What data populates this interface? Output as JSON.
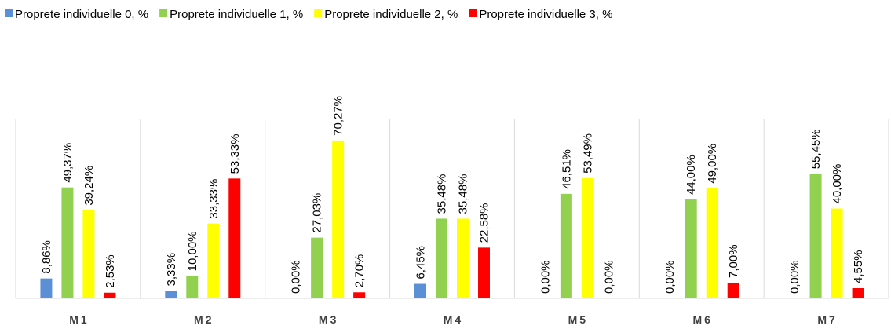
{
  "chart_data": {
    "type": "bar",
    "categories": [
      "M1",
      "M2",
      "M3",
      "M4",
      "M5",
      "M6",
      "M7"
    ],
    "series": [
      {
        "name": "Proprete individuelle 0, %",
        "color": "#5b8fd6",
        "values": [
          8.86,
          3.33,
          0,
          6.45,
          0,
          0,
          0
        ],
        "value_labels": [
          "8,86%",
          "3,33%",
          "0,00%",
          "6,45%",
          "0,00%",
          "0,00%",
          "0,00%"
        ]
      },
      {
        "name": "Proprete individuelle 1, %",
        "color": "#92d050",
        "values": [
          49.37,
          10.0,
          27.03,
          35.48,
          46.51,
          44.0,
          55.45
        ],
        "value_labels": [
          "49,37%",
          "10,00%",
          "27,03%",
          "35,48%",
          "46,51%",
          "44,00%",
          "55,45%"
        ]
      },
      {
        "name": "Proprete individuelle 2, %",
        "color": "#ffff00",
        "values": [
          39.24,
          33.33,
          70.27,
          35.48,
          53.49,
          49.0,
          40.0
        ],
        "value_labels": [
          "39,24%",
          "33,33%",
          "70,27%",
          "35,48%",
          "53,49%",
          "49,00%",
          "40,00%"
        ]
      },
      {
        "name": "Proprete individuelle 3, %",
        "color": "#ff0000",
        "values": [
          2.53,
          53.33,
          2.7,
          22.58,
          0,
          7.0,
          4.55
        ],
        "value_labels": [
          "2,53%",
          "53,33%",
          "2,70%",
          "22,58%",
          "0,00%",
          "7,00%",
          "4,55%"
        ]
      }
    ],
    "ylim": [
      0,
      80
    ],
    "legend": "top"
  }
}
